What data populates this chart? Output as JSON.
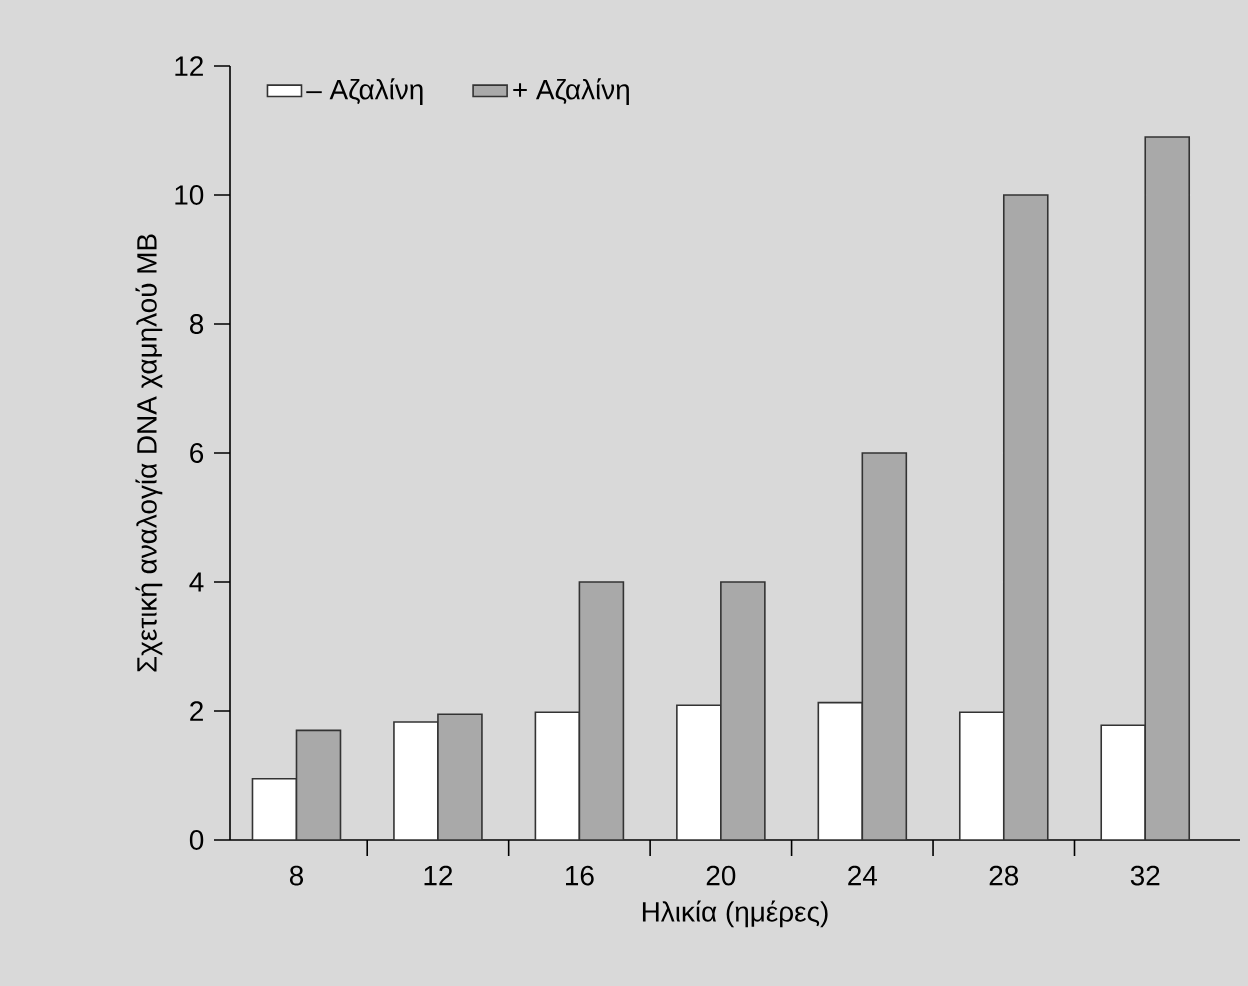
{
  "chart_data": {
    "type": "bar",
    "xlabel": "Ηλικία (ημέρες)",
    "ylabel": "Σχετική αναλογία DNA χαμηλού MB",
    "categories": [
      "8",
      "12",
      "16",
      "20",
      "24",
      "28",
      "32"
    ],
    "series": [
      {
        "name": "– Αζαλίνη",
        "color": "#ffffff",
        "values": [
          0.95,
          1.83,
          1.98,
          2.09,
          2.13,
          1.98,
          1.78
        ]
      },
      {
        "name": "+ Αζαλίνη",
        "color": "#a9a9a9",
        "values": [
          1.7,
          1.95,
          4.0,
          4.0,
          6.0,
          10.0,
          10.9
        ]
      }
    ],
    "ylim": [
      0,
      12
    ],
    "yticks": [
      0,
      2,
      4,
      6,
      8,
      10,
      12
    ],
    "legend": "top left"
  }
}
